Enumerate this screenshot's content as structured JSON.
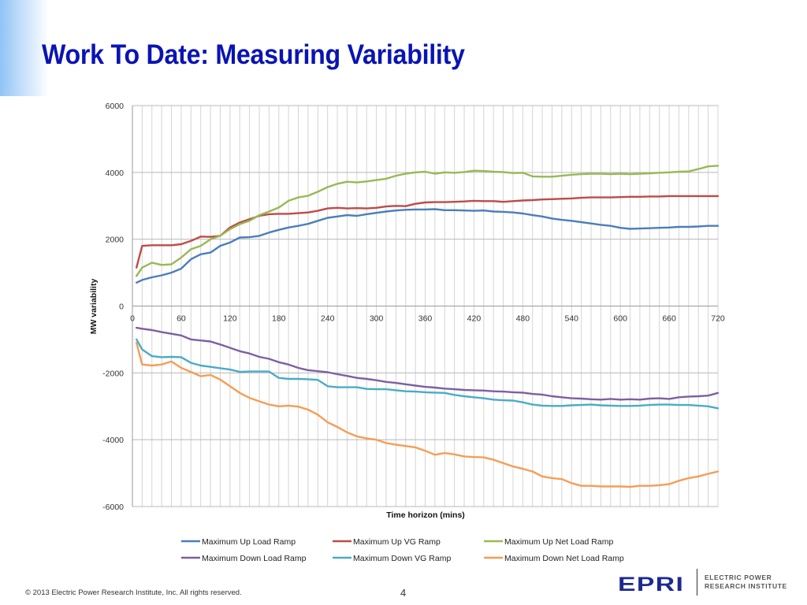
{
  "slide": {
    "title": "Work To Date: Measuring Variability",
    "footer": "© 2013 Electric Power Research Institute, Inc. All rights reserved.",
    "page_number": "4",
    "logo": {
      "mark": "EPRI",
      "line1": "ELECTRIC POWER",
      "line2": "RESEARCH INSTITUTE"
    }
  },
  "chart_data": {
    "type": "line",
    "title": "",
    "xlabel": "Time horizon (mins)",
    "ylabel": "MW variability",
    "xlim": [
      0,
      720
    ],
    "ylim": [
      -6000,
      6000
    ],
    "x_ticks": [
      0,
      60,
      120,
      180,
      240,
      300,
      360,
      420,
      480,
      540,
      600,
      660,
      720
    ],
    "y_ticks": [
      6000,
      4000,
      2000,
      0,
      -2000,
      -4000,
      -6000
    ],
    "grid": {
      "vertical_minor_every": 12,
      "horizontal_every": 2000
    },
    "legend_position": "bottom",
    "x": [
      5,
      12,
      24,
      36,
      48,
      60,
      72,
      84,
      96,
      108,
      120,
      132,
      144,
      156,
      168,
      180,
      192,
      204,
      216,
      228,
      240,
      252,
      264,
      276,
      288,
      300,
      312,
      324,
      336,
      348,
      360,
      372,
      384,
      396,
      408,
      420,
      432,
      444,
      456,
      468,
      480,
      492,
      504,
      516,
      528,
      540,
      552,
      564,
      576,
      588,
      600,
      612,
      624,
      636,
      648,
      660,
      672,
      684,
      696,
      708,
      720
    ],
    "series": [
      {
        "name": "Maximum Up Load Ramp",
        "color": "#4a7ebb",
        "values": [
          700,
          780,
          860,
          920,
          1000,
          1120,
          1400,
          1550,
          1600,
          1800,
          1900,
          2050,
          2060,
          2100,
          2200,
          2280,
          2350,
          2400,
          2460,
          2550,
          2640,
          2680,
          2720,
          2700,
          2750,
          2790,
          2830,
          2860,
          2880,
          2890,
          2890,
          2900,
          2870,
          2870,
          2860,
          2850,
          2860,
          2830,
          2820,
          2800,
          2770,
          2720,
          2680,
          2620,
          2580,
          2550,
          2510,
          2470,
          2430,
          2400,
          2340,
          2310,
          2320,
          2330,
          2340,
          2350,
          2370,
          2370,
          2380,
          2400,
          2400
        ]
      },
      {
        "name": "Maximum Up VG Ramp",
        "color": "#be4b48",
        "values": [
          1150,
          1800,
          1820,
          1820,
          1820,
          1850,
          1950,
          2080,
          2070,
          2100,
          2350,
          2500,
          2600,
          2700,
          2750,
          2760,
          2760,
          2780,
          2800,
          2850,
          2920,
          2940,
          2920,
          2930,
          2920,
          2940,
          2980,
          3000,
          2990,
          3060,
          3100,
          3110,
          3110,
          3120,
          3130,
          3150,
          3140,
          3140,
          3120,
          3140,
          3160,
          3170,
          3190,
          3200,
          3210,
          3220,
          3240,
          3250,
          3250,
          3250,
          3260,
          3270,
          3270,
          3280,
          3280,
          3290,
          3290,
          3290,
          3290,
          3290,
          3290
        ]
      },
      {
        "name": "Maximum Up Net Load Ramp",
        "color": "#98b954",
        "values": [
          900,
          1150,
          1300,
          1230,
          1250,
          1450,
          1700,
          1800,
          2000,
          2100,
          2300,
          2450,
          2550,
          2720,
          2830,
          2950,
          3150,
          3250,
          3300,
          3420,
          3560,
          3660,
          3720,
          3700,
          3730,
          3770,
          3810,
          3900,
          3960,
          4000,
          4020,
          3960,
          4000,
          3990,
          4010,
          4050,
          4040,
          4020,
          4010,
          3980,
          3990,
          3880,
          3870,
          3870,
          3900,
          3930,
          3950,
          3960,
          3960,
          3950,
          3960,
          3950,
          3960,
          3970,
          3990,
          4000,
          4020,
          4030,
          4100,
          4180,
          4200
        ]
      },
      {
        "name": "Maximum Down Load Ramp",
        "color": "#7d60a0",
        "values": [
          -650,
          -680,
          -720,
          -780,
          -830,
          -880,
          -1000,
          -1030,
          -1060,
          -1150,
          -1250,
          -1350,
          -1420,
          -1520,
          -1580,
          -1680,
          -1750,
          -1850,
          -1920,
          -1950,
          -1980,
          -2040,
          -2090,
          -2150,
          -2180,
          -2220,
          -2270,
          -2300,
          -2340,
          -2380,
          -2420,
          -2440,
          -2470,
          -2490,
          -2510,
          -2520,
          -2530,
          -2550,
          -2560,
          -2580,
          -2590,
          -2630,
          -2650,
          -2700,
          -2730,
          -2760,
          -2770,
          -2790,
          -2800,
          -2780,
          -2800,
          -2790,
          -2800,
          -2770,
          -2760,
          -2780,
          -2730,
          -2710,
          -2700,
          -2680,
          -2600
        ]
      },
      {
        "name": "Maximum Down VG Ramp",
        "color": "#4aacc5",
        "values": [
          -1000,
          -1300,
          -1500,
          -1530,
          -1520,
          -1530,
          -1700,
          -1780,
          -1820,
          -1860,
          -1900,
          -1970,
          -1960,
          -1960,
          -1960,
          -2150,
          -2180,
          -2180,
          -2190,
          -2210,
          -2400,
          -2430,
          -2430,
          -2430,
          -2480,
          -2490,
          -2490,
          -2520,
          -2550,
          -2560,
          -2580,
          -2590,
          -2600,
          -2660,
          -2700,
          -2730,
          -2760,
          -2800,
          -2820,
          -2830,
          -2880,
          -2950,
          -2980,
          -2990,
          -2990,
          -2970,
          -2960,
          -2950,
          -2970,
          -2980,
          -2990,
          -2990,
          -2980,
          -2960,
          -2950,
          -2950,
          -2960,
          -2960,
          -2980,
          -3000,
          -3060
        ]
      },
      {
        "name": "Maximum Down Net Load Ramp",
        "color": "#f59d56",
        "values": [
          -1100,
          -1750,
          -1780,
          -1750,
          -1660,
          -1850,
          -1970,
          -2100,
          -2060,
          -2200,
          -2400,
          -2600,
          -2750,
          -2850,
          -2950,
          -3000,
          -2980,
          -3010,
          -3100,
          -3250,
          -3480,
          -3620,
          -3780,
          -3900,
          -3960,
          -4000,
          -4100,
          -4150,
          -4190,
          -4230,
          -4330,
          -4450,
          -4400,
          -4440,
          -4500,
          -4520,
          -4530,
          -4600,
          -4700,
          -4800,
          -4870,
          -4950,
          -5100,
          -5150,
          -5180,
          -5300,
          -5380,
          -5380,
          -5400,
          -5400,
          -5400,
          -5410,
          -5380,
          -5380,
          -5360,
          -5330,
          -5230,
          -5150,
          -5100,
          -5020,
          -4950
        ]
      }
    ]
  }
}
